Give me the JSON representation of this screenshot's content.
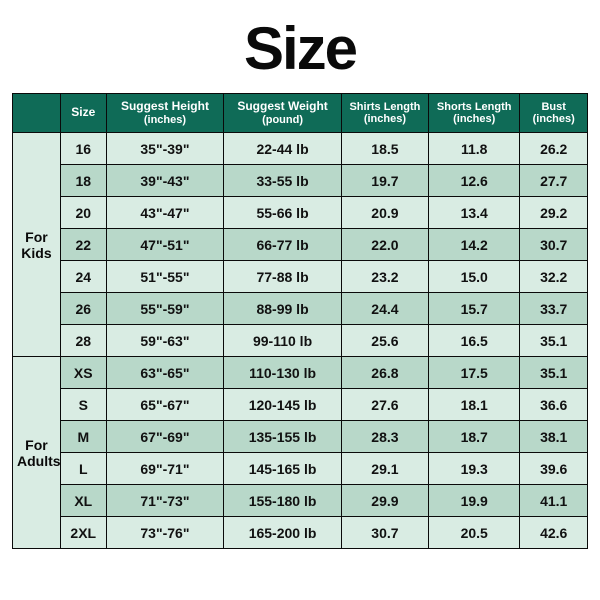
{
  "title": "Size",
  "colors": {
    "header_bg": "#0f6b57",
    "row_alt_a": "#d9ece3",
    "row_alt_b": "#b8d8c9",
    "group_bg": "#d9ece3",
    "border": "#0a0a0a"
  },
  "columns": [
    {
      "key": "category",
      "label": ""
    },
    {
      "key": "size",
      "label": "Size"
    },
    {
      "key": "height",
      "label": "Suggest Height",
      "unit": "(inches)"
    },
    {
      "key": "weight",
      "label": "Suggest Weight",
      "unit": "(pound)"
    },
    {
      "key": "shirts",
      "label": "Shirts Length",
      "unit": "(inches)",
      "small": true
    },
    {
      "key": "shorts",
      "label": "Shorts Length",
      "unit": "(inches)",
      "small": true
    },
    {
      "key": "bust",
      "label": "Bust",
      "unit": "(inches)",
      "small": true
    }
  ],
  "groups": [
    {
      "label": "For\nKids",
      "rows": [
        {
          "size": "16",
          "height": "35\"-39\"",
          "weight": "22-44 lb",
          "shirts": "18.5",
          "shorts": "11.8",
          "bust": "26.2"
        },
        {
          "size": "18",
          "height": "39\"-43\"",
          "weight": "33-55 lb",
          "shirts": "19.7",
          "shorts": "12.6",
          "bust": "27.7"
        },
        {
          "size": "20",
          "height": "43\"-47\"",
          "weight": "55-66 lb",
          "shirts": "20.9",
          "shorts": "13.4",
          "bust": "29.2"
        },
        {
          "size": "22",
          "height": "47\"-51\"",
          "weight": "66-77 lb",
          "shirts": "22.0",
          "shorts": "14.2",
          "bust": "30.7"
        },
        {
          "size": "24",
          "height": "51\"-55\"",
          "weight": "77-88 lb",
          "shirts": "23.2",
          "shorts": "15.0",
          "bust": "32.2"
        },
        {
          "size": "26",
          "height": "55\"-59\"",
          "weight": "88-99 lb",
          "shirts": "24.4",
          "shorts": "15.7",
          "bust": "33.7"
        },
        {
          "size": "28",
          "height": "59\"-63\"",
          "weight": "99-110 lb",
          "shirts": "25.6",
          "shorts": "16.5",
          "bust": "35.1"
        }
      ]
    },
    {
      "label": "For\nAdults",
      "rows": [
        {
          "size": "XS",
          "height": "63\"-65\"",
          "weight": "110-130 lb",
          "shirts": "26.8",
          "shorts": "17.5",
          "bust": "35.1"
        },
        {
          "size": "S",
          "height": "65\"-67\"",
          "weight": "120-145 lb",
          "shirts": "27.6",
          "shorts": "18.1",
          "bust": "36.6"
        },
        {
          "size": "M",
          "height": "67\"-69\"",
          "weight": "135-155 lb",
          "shirts": "28.3",
          "shorts": "18.7",
          "bust": "38.1"
        },
        {
          "size": "L",
          "height": "69\"-71\"",
          "weight": "145-165 lb",
          "shirts": "29.1",
          "shorts": "19.3",
          "bust": "39.6"
        },
        {
          "size": "XL",
          "height": "71\"-73\"",
          "weight": "155-180 lb",
          "shirts": "29.9",
          "shorts": "19.9",
          "bust": "41.1"
        },
        {
          "size": "2XL",
          "height": "73\"-76\"",
          "weight": "165-200 lb",
          "shirts": "30.7",
          "shorts": "20.5",
          "bust": "42.6"
        }
      ]
    }
  ]
}
